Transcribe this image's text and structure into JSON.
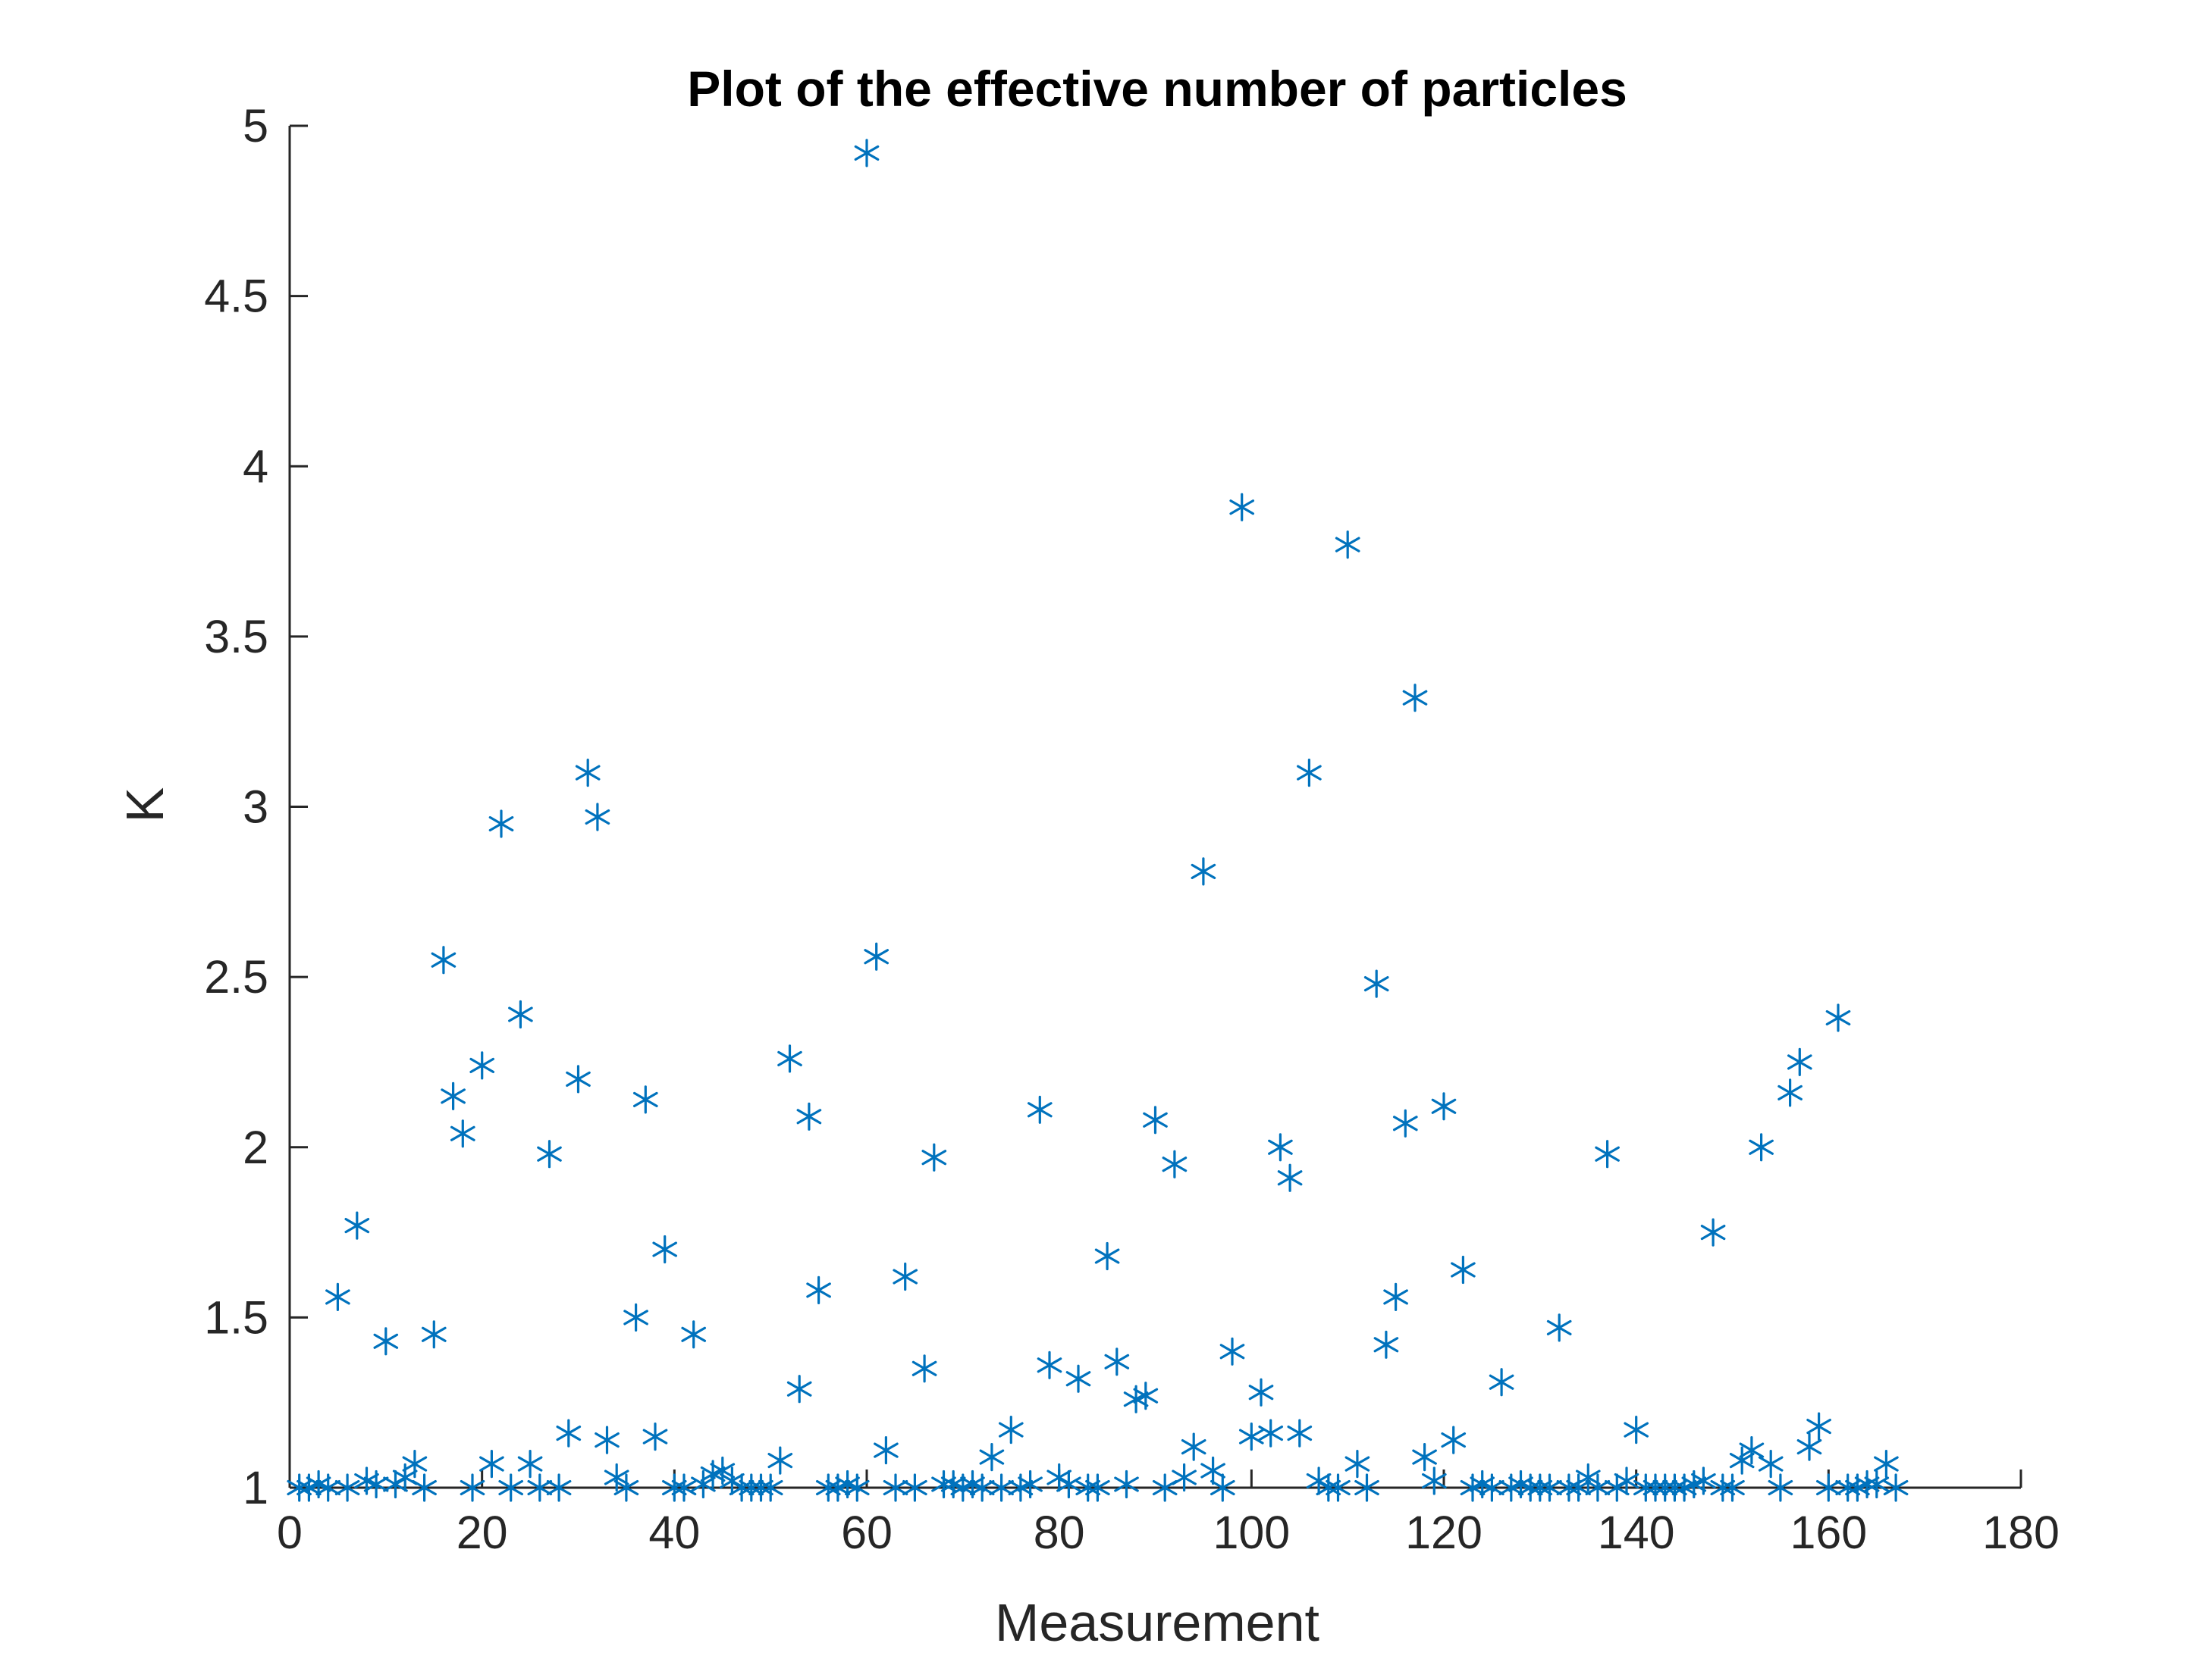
{
  "colors": {
    "marker": "#0072BD",
    "axis": "#262626",
    "title": "#000000",
    "background": "#ffffff"
  },
  "chart_data": {
    "type": "scatter",
    "title": "Plot of the effective number of particles",
    "xlabel": "Measurement",
    "ylabel": "K",
    "marker": "asterisk",
    "xlim": [
      0,
      180
    ],
    "ylim": [
      1,
      5
    ],
    "xticks": [
      "0",
      "20",
      "40",
      "60",
      "80",
      "100",
      "120",
      "140",
      "160",
      "180"
    ],
    "yticks": [
      "1",
      "1.5",
      "2",
      "2.5",
      "3",
      "3.5",
      "4",
      "4.5",
      "5"
    ],
    "grid": false,
    "legend": "none",
    "series": [
      {
        "x": [
          1,
          2,
          3,
          4,
          5,
          6,
          7,
          8,
          9,
          10,
          11,
          12,
          13,
          14,
          15,
          16,
          17,
          18,
          19,
          20,
          21,
          22,
          23,
          24,
          25,
          26,
          27,
          28,
          29,
          30,
          31,
          32,
          33,
          34,
          35,
          36,
          37,
          38,
          39,
          40,
          41,
          42,
          43,
          44,
          45,
          46,
          47,
          48,
          49,
          50,
          51,
          52,
          53,
          54,
          55,
          56,
          57,
          58,
          59,
          60,
          61,
          62,
          63,
          64,
          65,
          66,
          67,
          68,
          69,
          70,
          71,
          72,
          73,
          74,
          75,
          76,
          77,
          78,
          79,
          80,
          81,
          82,
          83,
          84,
          85,
          86,
          87,
          88,
          89,
          90,
          91,
          92,
          93,
          94,
          95,
          96,
          97,
          98,
          99,
          100,
          101,
          102,
          103,
          104,
          105,
          106,
          107,
          108,
          109,
          110,
          111,
          112,
          113,
          114,
          115,
          116,
          117,
          118,
          119,
          120,
          121,
          122,
          123,
          124,
          125,
          126,
          127,
          128,
          129,
          130,
          131,
          132,
          133,
          134,
          135,
          136,
          137,
          138,
          139,
          140,
          141,
          142,
          143,
          144,
          145,
          146,
          147,
          148,
          149,
          150,
          151,
          152,
          153,
          154,
          155,
          156,
          157,
          158,
          159,
          160,
          161,
          162,
          163,
          164,
          165,
          166,
          167
        ],
        "y": [
          1.0,
          1.0,
          1.01,
          1.0,
          1.56,
          1.0,
          1.77,
          1.02,
          1.01,
          1.43,
          1.01,
          1.03,
          1.07,
          1.0,
          1.45,
          2.55,
          2.15,
          2.04,
          1.0,
          2.24,
          1.07,
          2.95,
          1.0,
          2.39,
          1.07,
          1.0,
          1.98,
          1.0,
          1.16,
          2.2,
          3.1,
          2.97,
          1.14,
          1.03,
          1.0,
          1.5,
          2.14,
          1.15,
          1.7,
          1.0,
          1.0,
          1.45,
          1.01,
          1.04,
          1.05,
          1.02,
          1.0,
          1.0,
          1.0,
          1.0,
          1.08,
          2.26,
          1.29,
          2.09,
          1.58,
          1.0,
          1.0,
          1.01,
          1.0,
          4.92,
          2.56,
          1.11,
          1.0,
          1.62,
          1.0,
          1.35,
          1.97,
          1.01,
          1.01,
          1.0,
          1.01,
          1.0,
          1.09,
          1.0,
          1.17,
          1.0,
          1.01,
          2.11,
          1.36,
          1.03,
          1.01,
          1.32,
          1.0,
          1.0,
          1.68,
          1.37,
          1.01,
          1.26,
          1.27,
          2.08,
          1.0,
          1.95,
          1.03,
          1.12,
          2.81,
          1.05,
          1.0,
          1.4,
          3.88,
          1.15,
          1.28,
          1.16,
          2.0,
          1.91,
          1.16,
          3.1,
          1.02,
          1.0,
          1.0,
          3.77,
          1.07,
          1.0,
          2.48,
          1.42,
          1.56,
          2.07,
          3.32,
          1.09,
          1.02,
          2.12,
          1.14,
          1.64,
          1.0,
          1.01,
          1.0,
          1.31,
          1.0,
          1.01,
          1.0,
          1.0,
          1.0,
          1.47,
          1.0,
          1.0,
          1.03,
          1.0,
          1.98,
          1.0,
          1.02,
          1.17,
          1.0,
          1.0,
          1.0,
          1.0,
          1.0,
          1.01,
          1.02,
          1.75,
          1.0,
          1.0,
          1.08,
          1.11,
          2.0,
          1.07,
          1.0,
          2.16,
          2.25,
          1.12,
          1.18,
          1.0,
          2.38,
          1.0,
          1.0,
          1.01,
          1.01,
          1.07,
          1.0
        ]
      }
    ]
  }
}
